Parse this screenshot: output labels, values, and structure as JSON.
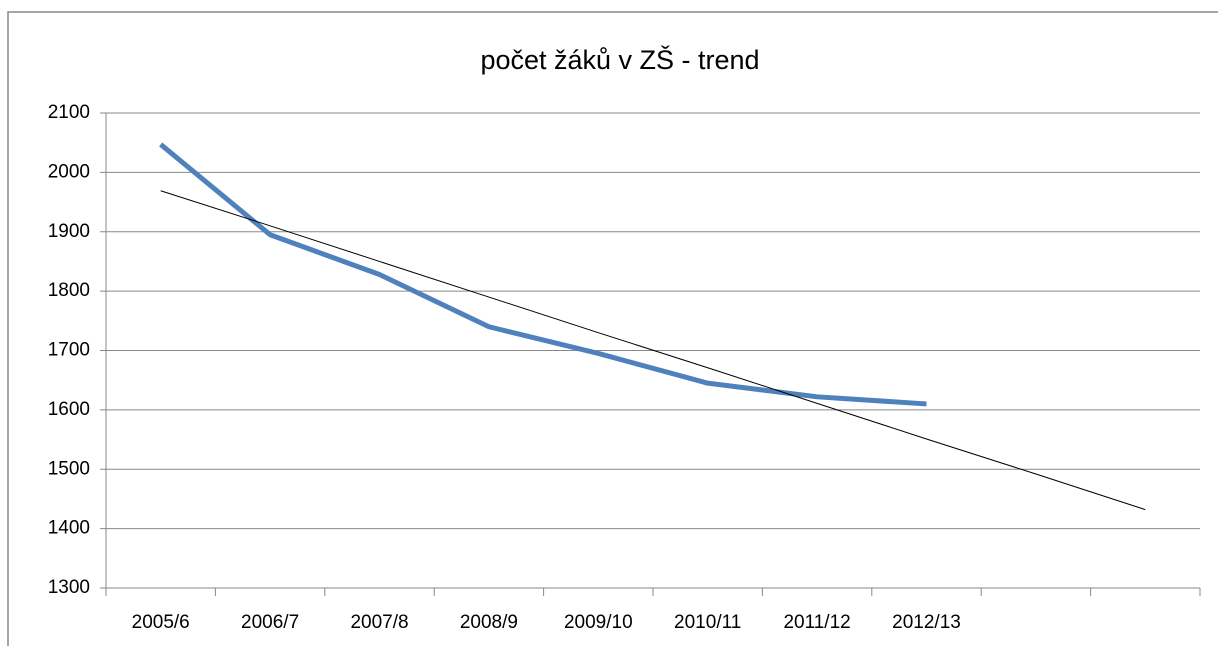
{
  "chart_data": {
    "type": "line",
    "title": "počet žáků v ZŠ - trend",
    "categories": [
      "2005/6",
      "2006/7",
      "2007/8",
      "2008/9",
      "2009/10",
      "2010/11",
      "2011/12",
      "2012/13",
      null,
      null
    ],
    "series": [
      {
        "color": "#4f81bd",
        "width": 5,
        "values": [
          2047,
          1895,
          1828,
          1740,
          1695,
          1645,
          1622,
          1610,
          null,
          null
        ]
      },
      {
        "color": "#000000",
        "width": 1,
        "values": [
          1969,
          1910,
          1850,
          1790,
          1730,
          1671,
          1611,
          1551,
          1492,
          1432
        ]
      }
    ],
    "ylim": [
      1300,
      2100
    ],
    "yticks": [
      1300,
      1400,
      1500,
      1600,
      1700,
      1800,
      1900,
      2000,
      2100
    ],
    "grid": true
  }
}
